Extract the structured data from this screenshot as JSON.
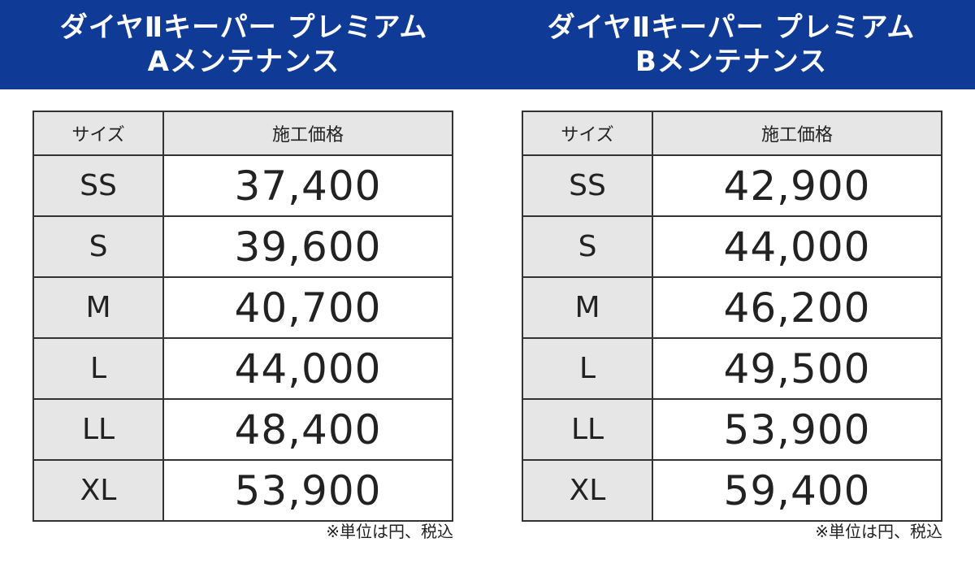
{
  "panels": [
    {
      "title_line1": "ダイヤⅡキーパー プレミアム",
      "title_line2": "Aメンテナンス",
      "headers": {
        "size": "サイズ",
        "price": "施工価格"
      },
      "rows": [
        {
          "size": "SS",
          "price": "37,400"
        },
        {
          "size": "S",
          "price": "39,600"
        },
        {
          "size": "M",
          "price": "40,700"
        },
        {
          "size": "L",
          "price": "44,000"
        },
        {
          "size": "LL",
          "price": "48,400"
        },
        {
          "size": "XL",
          "price": "53,900"
        }
      ],
      "note": "※単位は円、税込"
    },
    {
      "title_line1": "ダイヤⅡキーパー プレミアム",
      "title_line2": "Bメンテナンス",
      "headers": {
        "size": "サイズ",
        "price": "施工価格"
      },
      "rows": [
        {
          "size": "SS",
          "price": "42,900"
        },
        {
          "size": "S",
          "price": "44,000"
        },
        {
          "size": "M",
          "price": "46,200"
        },
        {
          "size": "L",
          "price": "49,500"
        },
        {
          "size": "LL",
          "price": "53,900"
        },
        {
          "size": "XL",
          "price": "59,400"
        }
      ],
      "note": "※単位は円、税込"
    }
  ],
  "colors": {
    "header_bg": "#0f3b96",
    "cell_gray": "#e6e6e6",
    "border": "#333333"
  }
}
